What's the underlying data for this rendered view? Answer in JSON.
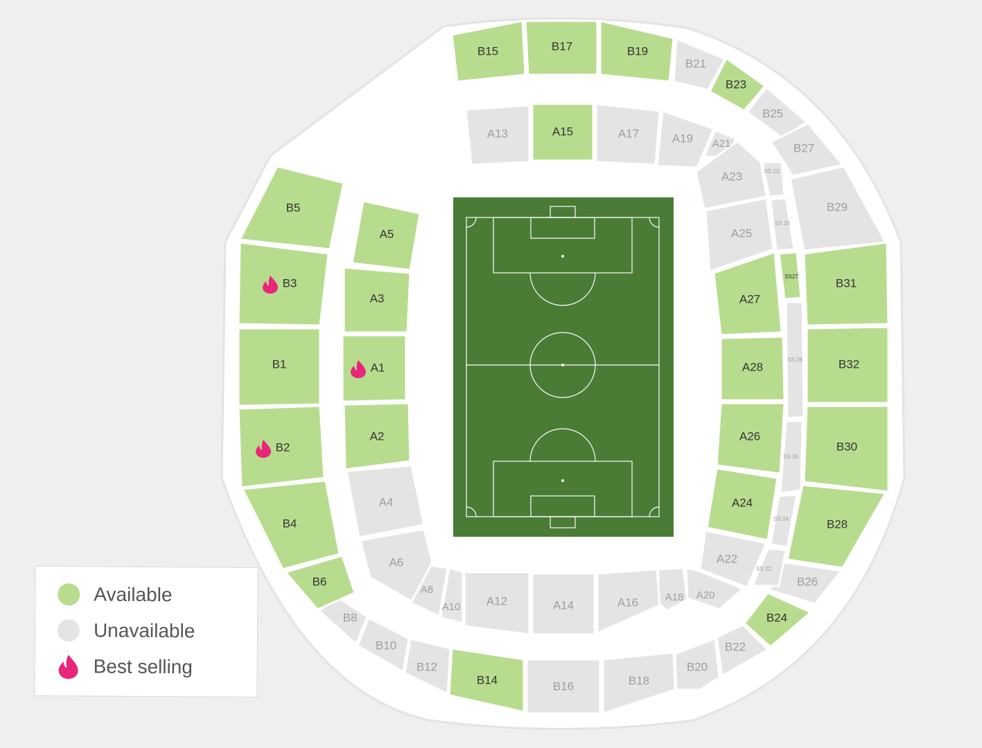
{
  "colors": {
    "available": "#b8dc8e",
    "unavailable": "#e4e4e4",
    "best_selling": "#e8267a",
    "pitch": "#4a7c35",
    "line": "#ffffff",
    "label_available": "#333333",
    "label_unavailable": "#9e9e9e"
  },
  "legend": {
    "available_label": "Available",
    "unavailable_label": "Unavailable",
    "best_selling_label": "Best selling"
  },
  "sections": [
    {
      "id": "B15",
      "label": "B15",
      "status": "available"
    },
    {
      "id": "B17",
      "label": "B17",
      "status": "available"
    },
    {
      "id": "B19",
      "label": "B19",
      "status": "available"
    },
    {
      "id": "B21",
      "label": "B21",
      "status": "unavailable"
    },
    {
      "id": "B23",
      "label": "B23",
      "status": "available"
    },
    {
      "id": "B25",
      "label": "B25",
      "status": "unavailable"
    },
    {
      "id": "B27",
      "label": "B27",
      "status": "unavailable"
    },
    {
      "id": "B29",
      "label": "B29",
      "status": "unavailable"
    },
    {
      "id": "B31",
      "label": "B31",
      "status": "available"
    },
    {
      "id": "B32",
      "label": "B32",
      "status": "available"
    },
    {
      "id": "B30",
      "label": "B30",
      "status": "available"
    },
    {
      "id": "B28",
      "label": "B28",
      "status": "available"
    },
    {
      "id": "B26",
      "label": "B26",
      "status": "unavailable"
    },
    {
      "id": "B24",
      "label": "B24",
      "status": "available"
    },
    {
      "id": "B22",
      "label": "B22",
      "status": "unavailable"
    },
    {
      "id": "B20",
      "label": "B20",
      "status": "unavailable"
    },
    {
      "id": "B18",
      "label": "B18",
      "status": "unavailable"
    },
    {
      "id": "B16",
      "label": "B16",
      "status": "unavailable"
    },
    {
      "id": "B14",
      "label": "B14",
      "status": "available"
    },
    {
      "id": "B12",
      "label": "B12",
      "status": "unavailable"
    },
    {
      "id": "B10",
      "label": "B10",
      "status": "unavailable"
    },
    {
      "id": "B8",
      "label": "B8",
      "status": "unavailable"
    },
    {
      "id": "B6",
      "label": "B6",
      "status": "available"
    },
    {
      "id": "B4",
      "label": "B4",
      "status": "available"
    },
    {
      "id": "B2",
      "label": "B2",
      "status": "available",
      "best_selling": true
    },
    {
      "id": "B1",
      "label": "B1",
      "status": "available"
    },
    {
      "id": "B3",
      "label": "B3",
      "status": "available",
      "best_selling": true
    },
    {
      "id": "B5",
      "label": "B5",
      "status": "available"
    },
    {
      "id": "A13",
      "label": "A13",
      "status": "unavailable"
    },
    {
      "id": "A15",
      "label": "A15",
      "status": "available"
    },
    {
      "id": "A17",
      "label": "A17",
      "status": "unavailable"
    },
    {
      "id": "A19",
      "label": "A19",
      "status": "unavailable"
    },
    {
      "id": "A21",
      "label": "A21",
      "status": "unavailable"
    },
    {
      "id": "A23",
      "label": "A23",
      "status": "unavailable"
    },
    {
      "id": "A25",
      "label": "A25",
      "status": "unavailable"
    },
    {
      "id": "A27",
      "label": "A27",
      "status": "available"
    },
    {
      "id": "A28",
      "label": "A28",
      "status": "available"
    },
    {
      "id": "A26",
      "label": "A26",
      "status": "available"
    },
    {
      "id": "A24",
      "label": "A24",
      "status": "available"
    },
    {
      "id": "A22",
      "label": "A22",
      "status": "unavailable"
    },
    {
      "id": "A20",
      "label": "A20",
      "status": "unavailable"
    },
    {
      "id": "A18",
      "label": "A18",
      "status": "unavailable"
    },
    {
      "id": "A16",
      "label": "A16",
      "status": "unavailable"
    },
    {
      "id": "A14",
      "label": "A14",
      "status": "unavailable"
    },
    {
      "id": "A12",
      "label": "A12",
      "status": "unavailable"
    },
    {
      "id": "A10",
      "label": "A10",
      "status": "unavailable"
    },
    {
      "id": "A8",
      "label": "A8",
      "status": "unavailable"
    },
    {
      "id": "A6",
      "label": "A6",
      "status": "unavailable"
    },
    {
      "id": "A4",
      "label": "A4",
      "status": "unavailable"
    },
    {
      "id": "A2",
      "label": "A2",
      "status": "available"
    },
    {
      "id": "A1",
      "label": "A1",
      "status": "available",
      "best_selling": true
    },
    {
      "id": "A3",
      "label": "A3",
      "status": "available"
    },
    {
      "id": "A5",
      "label": "A5",
      "status": "available"
    },
    {
      "id": "SS23",
      "label": "SS 23",
      "status": "unavailable"
    },
    {
      "id": "SS25",
      "label": "SS 25",
      "status": "unavailable"
    },
    {
      "id": "SS27",
      "label": "SS27",
      "status": "available"
    },
    {
      "id": "SS28",
      "label": "SS 28",
      "status": "unavailable"
    },
    {
      "id": "SS26",
      "label": "SS 26",
      "status": "unavailable"
    },
    {
      "id": "SS24",
      "label": "SS 24",
      "status": "unavailable"
    },
    {
      "id": "SS22",
      "label": "SS 22",
      "status": "unavailable"
    }
  ]
}
